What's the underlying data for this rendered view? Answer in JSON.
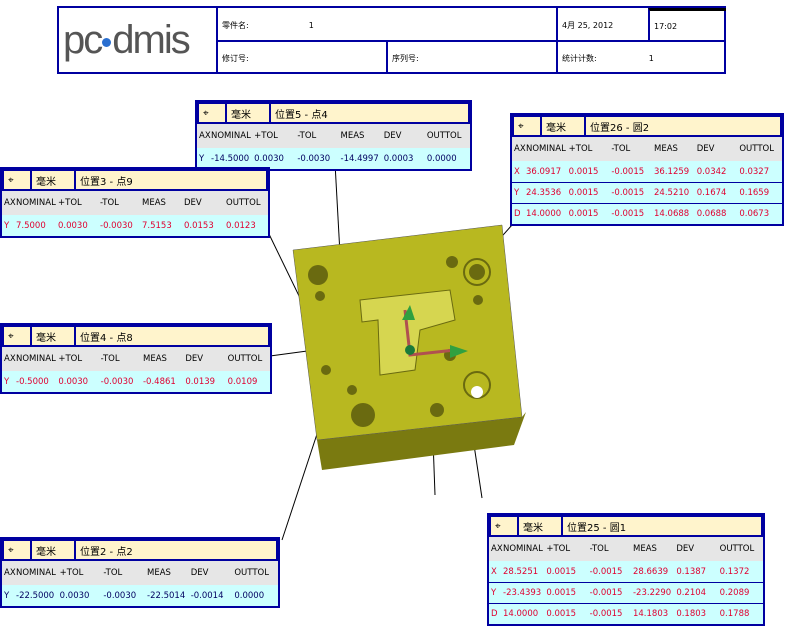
{
  "header": {
    "logo": "pc·dmis",
    "part_name_label": "零件名:",
    "part_name": "1",
    "date": "4月 25, 2012",
    "time": "17:02",
    "revision_label": "修订号:",
    "serial_label": "序列号:",
    "stat_count_label": "统计计数:",
    "stat_count": "1"
  },
  "columns": [
    "AX",
    "NOMINAL",
    "+TOL",
    "-TOL",
    "MEAS",
    "DEV",
    "OUTTOL"
  ],
  "tables": [
    {
      "icon": "position-icon",
      "units": "毫米",
      "name": "位置5 - 点4",
      "status": "in",
      "rows": [
        [
          "Y",
          "-14.5000",
          "0.0030",
          "-0.0030",
          "-14.4997",
          "0.0003",
          "0.0000"
        ]
      ]
    },
    {
      "icon": "position-icon",
      "units": "毫米",
      "name": "位置26 - 圆2",
      "status": "out",
      "rows": [
        [
          "X",
          "36.0917",
          "0.0015",
          "-0.0015",
          "36.1259",
          "0.0342",
          "0.0327"
        ],
        [
          "Y",
          "24.3536",
          "0.0015",
          "-0.0015",
          "24.5210",
          "0.1674",
          "0.1659"
        ],
        [
          "D",
          "14.0000",
          "0.0015",
          "-0.0015",
          "14.0688",
          "0.0688",
          "0.0673"
        ]
      ]
    },
    {
      "icon": "position-icon",
      "units": "毫米",
      "name": "位置3 - 点9",
      "status": "out",
      "rows": [
        [
          "Y",
          "7.5000",
          "0.0030",
          "-0.0030",
          "7.5153",
          "0.0153",
          "0.0123"
        ]
      ]
    },
    {
      "icon": "position-icon",
      "units": "毫米",
      "name": "位置4 - 点8",
      "status": "out",
      "rows": [
        [
          "Y",
          "-0.5000",
          "0.0030",
          "-0.0030",
          "-0.4861",
          "0.0139",
          "0.0109"
        ]
      ]
    },
    {
      "icon": "position-icon",
      "units": "毫米",
      "name": "位置2 - 点2",
      "status": "in",
      "rows": [
        [
          "Y",
          "-22.5000",
          "0.0030",
          "-0.0030",
          "-22.5014",
          "-0.0014",
          "0.0000"
        ]
      ]
    },
    {
      "icon": "position-icon",
      "units": "毫米",
      "name": "位置25 - 圆1",
      "status": "out",
      "rows": [
        [
          "X",
          "28.5251",
          "0.0015",
          "-0.0015",
          "28.6639",
          "0.1387",
          "0.1372"
        ],
        [
          "Y",
          "-23.4393",
          "0.0015",
          "-0.0015",
          "-23.2290",
          "0.2104",
          "0.2089"
        ],
        [
          "D",
          "14.0000",
          "0.0015",
          "-0.0015",
          "14.1803",
          "0.1803",
          "0.1788"
        ]
      ]
    }
  ],
  "colors": {
    "border": "#0000a0",
    "out_of_tol": "#e00030",
    "in_tol": "#000060",
    "part": "#b8b820"
  }
}
